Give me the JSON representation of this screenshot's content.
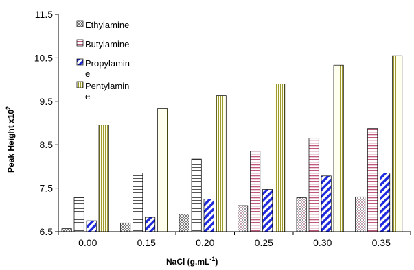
{
  "chart_data": {
    "type": "bar",
    "categories": [
      "0.00",
      "0.15",
      "0.20",
      "0.25",
      "0.30",
      "0.35"
    ],
    "series": [
      {
        "name": "Ethylamine",
        "pattern": "checker",
        "values": [
          6.57,
          6.7,
          6.9,
          7.1,
          7.28,
          7.3
        ]
      },
      {
        "name": "Butylamine",
        "pattern": "hstripe",
        "values": [
          7.28,
          7.85,
          8.17,
          8.35,
          8.65,
          8.87
        ]
      },
      {
        "name": "Propylamine",
        "pattern": "diagonal",
        "values": [
          6.75,
          6.83,
          7.25,
          7.47,
          7.78,
          7.85
        ]
      },
      {
        "name": "Pentylamine",
        "pattern": "vstripe",
        "values": [
          8.95,
          9.33,
          9.63,
          9.9,
          10.33,
          10.55
        ]
      }
    ],
    "legend_labels": [
      [
        "Ethylamine"
      ],
      [
        "Butylamine"
      ],
      [
        "Propylamin",
        "e"
      ],
      [
        "Pentylamin",
        "e"
      ]
    ],
    "xlabel": "NaCl (g.mL",
    "xlabel_sup": "-1",
    "xlabel_end": ")",
    "ylabel": "Peak Height x10",
    "ylabel_sup": "2",
    "ylim": [
      6.5,
      11.5
    ],
    "yticks": [
      "6.5",
      "7.5",
      "8.5",
      "9.5",
      "10.5",
      "11.5"
    ],
    "grid": false,
    "legend_position": "top-left",
    "colors": {
      "checker": "#8c8c8c",
      "hstripe_pink": "#c0587a",
      "diagonal_blue": "#1f2bdc",
      "vstripe_olive": "#9e9a2e",
      "outline": "#000000"
    }
  }
}
